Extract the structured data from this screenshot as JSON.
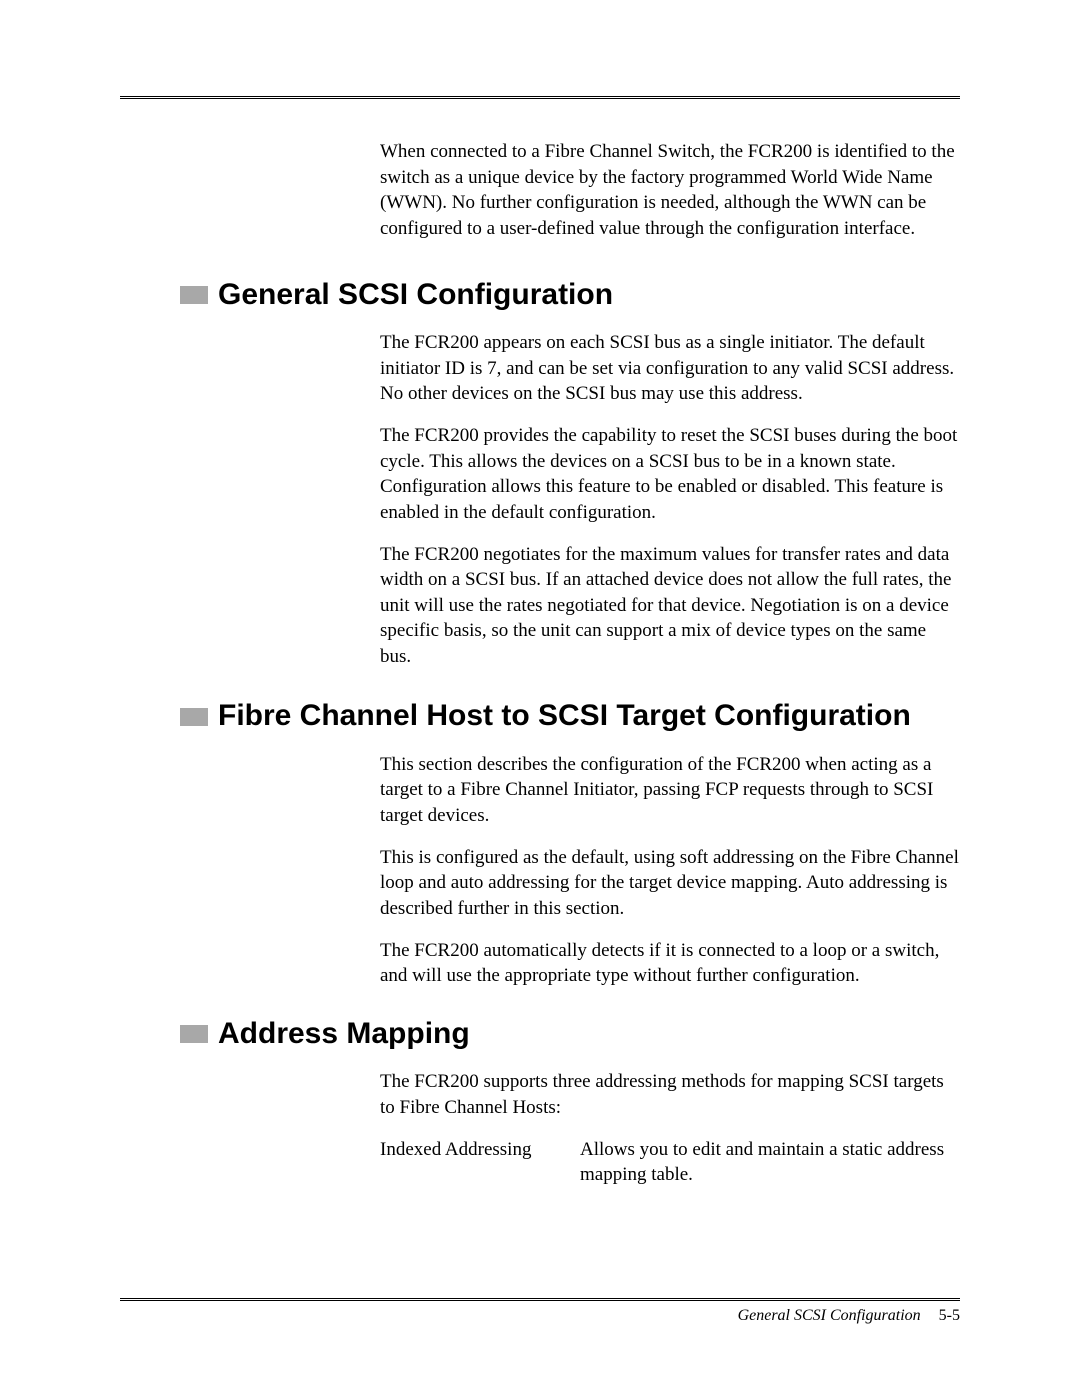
{
  "intro": "When connected to a Fibre Channel Switch, the FCR200 is identified to the switch as a unique device by the factory programmed World Wide Name (WWN). No further configuration is needed, although the WWN can be configured to a user-defined value through the configuration interface.",
  "sections": [
    {
      "title": "General SCSI Configuration",
      "paras": [
        "The FCR200 appears on each SCSI bus as a single initiator. The default initiator ID is 7, and can be set via configuration to any valid SCSI address. No other devices on the SCSI bus may use this address.",
        "The FCR200 provides the capability to reset the SCSI buses during the boot cycle. This allows the devices on a SCSI bus to be in a known state. Configuration allows this feature to be enabled or disabled. This feature is enabled in the default configuration.",
        "The FCR200 negotiates for the maximum values for transfer rates and data width on a SCSI bus. If an attached device does not allow the full rates, the unit will use the rates negotiated for that device. Negotiation is on a device specific basis, so the unit can support a mix of device types on the same bus."
      ]
    },
    {
      "title": "Fibre Channel Host to SCSI Target Configuration",
      "paras": [
        "This section describes the configuration of the FCR200 when acting as a target to a Fibre Channel Initiator, passing FCP requests through to SCSI target devices.",
        "This is configured as the default, using soft addressing on the Fibre Channel loop and auto addressing for the target device mapping. Auto addressing is described further in this section.",
        "The FCR200 automatically detects if it is connected to a loop or a switch, and will use the appropriate type without further configuration."
      ]
    },
    {
      "title": "Address Mapping",
      "paras": [
        "The FCR200 supports three addressing methods for mapping SCSI targets to Fibre Channel Hosts:"
      ],
      "defs": [
        {
          "term": "Indexed Addressing",
          "desc": "Allows you to edit and maintain a static address mapping table."
        }
      ]
    }
  ],
  "footer": {
    "section_ref": "General SCSI Configuration",
    "page": "5-5"
  },
  "style": {
    "marker_color": "#a8a8a8",
    "body_font": "serif",
    "heading_font": "sans-serif"
  }
}
